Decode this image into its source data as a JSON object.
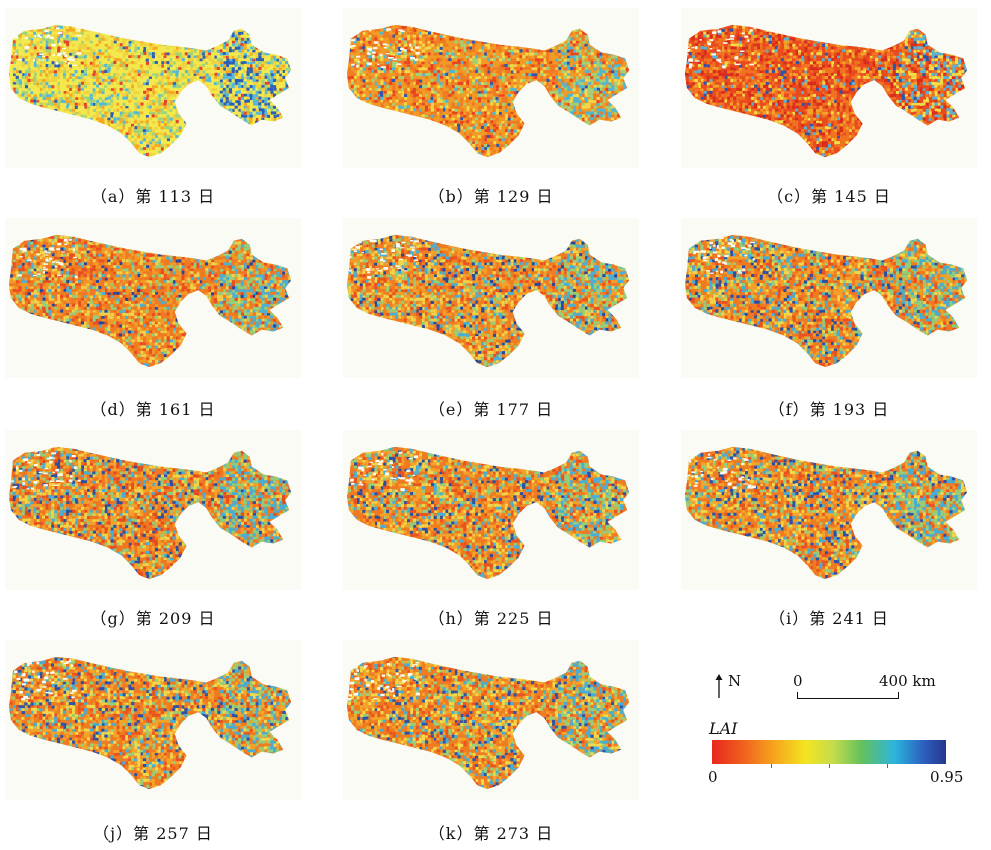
{
  "panels": [
    {
      "caption": "（a）第 113 日",
      "palette": [
        "#f3e94f",
        "#efd240",
        "#f5a623",
        "#9ed27b",
        "#54b9d8",
        "#2c5fb8",
        "#e3452a"
      ],
      "weights": [
        42,
        22,
        10,
        12,
        7,
        3,
        4
      ]
    },
    {
      "caption": "（b）第 129 日",
      "palette": [
        "#f29a26",
        "#ef7a23",
        "#e9431f",
        "#f3d94a",
        "#9fd27a",
        "#4fb6d6",
        "#2a57b0"
      ],
      "weights": [
        34,
        26,
        10,
        14,
        8,
        5,
        3
      ]
    },
    {
      "caption": "（c）第 145 日",
      "palette": [
        "#e94a1e",
        "#f07421",
        "#d82c1c",
        "#f2a429",
        "#f3dd49",
        "#59b3d7",
        "#2b55ae"
      ],
      "weights": [
        30,
        28,
        16,
        12,
        6,
        5,
        3
      ]
    },
    {
      "caption": "（d）第 161 日",
      "palette": [
        "#ef7a22",
        "#f29a27",
        "#e94d20",
        "#f0d24a",
        "#93cf7c",
        "#4ab0d6",
        "#26459e"
      ],
      "weights": [
        30,
        22,
        14,
        14,
        9,
        6,
        5
      ]
    },
    {
      "caption": "（e）第 177 日",
      "palette": [
        "#ef7d22",
        "#f2a02a",
        "#f0d44b",
        "#e9521f",
        "#96cf7c",
        "#4aafd6",
        "#27489f"
      ],
      "weights": [
        26,
        20,
        16,
        12,
        11,
        8,
        7
      ]
    },
    {
      "caption": "（f）第 193 日",
      "palette": [
        "#ef7a22",
        "#f3a229",
        "#f1d64b",
        "#e9521f",
        "#90cd7d",
        "#45add6",
        "#2a4ea3"
      ],
      "weights": [
        26,
        20,
        15,
        12,
        11,
        9,
        7
      ]
    },
    {
      "caption": "（g）第 209 日",
      "palette": [
        "#ef7722",
        "#f3a12a",
        "#f1d34a",
        "#e44b1f",
        "#8fcc7e",
        "#47aed6",
        "#2a4fa3"
      ],
      "weights": [
        26,
        20,
        14,
        13,
        11,
        9,
        7
      ]
    },
    {
      "caption": "（h）第 225 日",
      "palette": [
        "#ef7a22",
        "#f3a22a",
        "#f1d54b",
        "#e9521f",
        "#93ce7c",
        "#48afd6",
        "#2a4fa3"
      ],
      "weights": [
        28,
        20,
        15,
        12,
        10,
        8,
        7
      ]
    },
    {
      "caption": "（i）第 241 日",
      "palette": [
        "#ef7c22",
        "#f3a42a",
        "#f1d84c",
        "#e9531f",
        "#95cf7c",
        "#46aed6",
        "#2b52a6"
      ],
      "weights": [
        28,
        20,
        15,
        11,
        10,
        8,
        8
      ]
    },
    {
      "caption": "（j）第 257 日",
      "palette": [
        "#ef7c22",
        "#f3a52a",
        "#f1d84c",
        "#e9531f",
        "#95cf7c",
        "#46aed6",
        "#2b52a6"
      ],
      "weights": [
        28,
        20,
        15,
        11,
        10,
        8,
        8
      ]
    },
    {
      "caption": "（k）第 273 日",
      "palette": [
        "#ef7d22",
        "#f3a62a",
        "#f1da4c",
        "#e9541f",
        "#97cf7c",
        "#46aed6",
        "#2b53a7"
      ],
      "weights": [
        30,
        20,
        15,
        11,
        9,
        8,
        7
      ]
    }
  ],
  "legend": {
    "north": "N",
    "scale_zero": "0",
    "scale_distance": "400 km",
    "title": "LAI",
    "min_label": "0",
    "max_label": "0.95",
    "colors": [
      "#e8261e",
      "#f0641e",
      "#f6a21c",
      "#f3e520",
      "#c3dc4c",
      "#63c15d",
      "#2cb5dd",
      "#2c62c0",
      "#26368c"
    ]
  }
}
